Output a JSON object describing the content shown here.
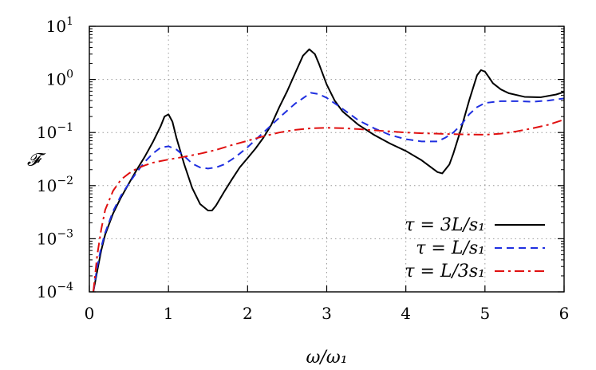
{
  "chart_data": {
    "type": "line",
    "title": "",
    "xlabel": "ω/ω₁",
    "ylabel": "𝓕",
    "xlim": [
      0,
      6
    ],
    "ylim_log10": [
      -4,
      1
    ],
    "y_scale": "log",
    "grid": true,
    "legend_position": "bottom-right",
    "x_ticks": [
      "0",
      "1",
      "2",
      "3",
      "4",
      "5",
      "6"
    ],
    "y_ticks": [
      {
        "mantissa": "10",
        "exponent": "1"
      },
      {
        "mantissa": "10",
        "exponent": "0"
      },
      {
        "mantissa": "10",
        "exponent": "−1"
      },
      {
        "mantissa": "10",
        "exponent": "−2"
      },
      {
        "mantissa": "10",
        "exponent": "−3"
      },
      {
        "mantissa": "10",
        "exponent": "−4"
      }
    ],
    "series": [
      {
        "name": "τ = 3L/s₁",
        "color": "#000000",
        "dash": "solid",
        "x": [
          0.05,
          0.1,
          0.15,
          0.2,
          0.3,
          0.4,
          0.5,
          0.6,
          0.7,
          0.8,
          0.9,
          0.95,
          1.0,
          1.05,
          1.1,
          1.2,
          1.3,
          1.4,
          1.5,
          1.55,
          1.6,
          1.7,
          1.8,
          1.9,
          2.0,
          2.1,
          2.2,
          2.3,
          2.4,
          2.5,
          2.6,
          2.7,
          2.78,
          2.85,
          2.9,
          3.0,
          3.1,
          3.2,
          3.4,
          3.6,
          3.8,
          4.0,
          4.2,
          4.4,
          4.46,
          4.55,
          4.6,
          4.7,
          4.8,
          4.9,
          4.95,
          5.0,
          5.05,
          5.1,
          5.2,
          5.3,
          5.5,
          5.7,
          5.9,
          6.0
        ],
        "y": [
          0.0001,
          0.00025,
          0.0006,
          0.0012,
          0.003,
          0.006,
          0.011,
          0.02,
          0.035,
          0.065,
          0.13,
          0.2,
          0.22,
          0.16,
          0.08,
          0.025,
          0.009,
          0.0045,
          0.0034,
          0.0034,
          0.0042,
          0.0075,
          0.013,
          0.022,
          0.033,
          0.05,
          0.08,
          0.14,
          0.3,
          0.6,
          1.3,
          2.8,
          3.7,
          3.0,
          2.0,
          0.8,
          0.4,
          0.25,
          0.14,
          0.09,
          0.062,
          0.045,
          0.03,
          0.018,
          0.017,
          0.025,
          0.04,
          0.12,
          0.4,
          1.2,
          1.5,
          1.4,
          1.1,
          0.85,
          0.65,
          0.55,
          0.47,
          0.46,
          0.52,
          0.58
        ]
      },
      {
        "name": "τ = L/s₁",
        "color": "#1f2fe0",
        "dash": "dashed",
        "x": [
          0.05,
          0.1,
          0.15,
          0.2,
          0.3,
          0.4,
          0.5,
          0.6,
          0.7,
          0.8,
          0.9,
          1.0,
          1.1,
          1.2,
          1.3,
          1.4,
          1.5,
          1.6,
          1.7,
          1.8,
          1.9,
          2.0,
          2.2,
          2.4,
          2.6,
          2.8,
          2.9,
          3.0,
          3.2,
          3.4,
          3.6,
          3.8,
          4.0,
          4.2,
          4.4,
          4.5,
          4.6,
          4.7,
          4.8,
          4.9,
          5.0,
          5.2,
          5.4,
          5.6,
          5.8,
          6.0
        ],
        "y": [
          0.0001,
          0.0003,
          0.0007,
          0.0013,
          0.0033,
          0.0065,
          0.011,
          0.018,
          0.028,
          0.04,
          0.052,
          0.055,
          0.048,
          0.036,
          0.026,
          0.022,
          0.021,
          0.022,
          0.025,
          0.031,
          0.04,
          0.053,
          0.1,
          0.19,
          0.35,
          0.56,
          0.53,
          0.45,
          0.28,
          0.17,
          0.12,
          0.09,
          0.075,
          0.068,
          0.068,
          0.08,
          0.1,
          0.14,
          0.22,
          0.3,
          0.36,
          0.39,
          0.39,
          0.38,
          0.4,
          0.44
        ]
      },
      {
        "name": "τ = L/3s₁",
        "color": "#e01010",
        "dash": "dashdot",
        "x": [
          0.05,
          0.1,
          0.15,
          0.2,
          0.3,
          0.4,
          0.5,
          0.6,
          0.7,
          0.8,
          0.9,
          1.0,
          1.2,
          1.4,
          1.6,
          1.8,
          2.0,
          2.2,
          2.4,
          2.6,
          2.8,
          3.0,
          3.2,
          3.4,
          3.6,
          3.8,
          4.0,
          4.2,
          4.4,
          4.6,
          4.8,
          5.0,
          5.2,
          5.4,
          5.6,
          5.8,
          6.0
        ],
        "y": [
          0.0001,
          0.0005,
          0.0015,
          0.0035,
          0.008,
          0.013,
          0.017,
          0.021,
          0.024,
          0.027,
          0.029,
          0.031,
          0.035,
          0.04,
          0.047,
          0.058,
          0.07,
          0.085,
          0.1,
          0.112,
          0.12,
          0.123,
          0.121,
          0.116,
          0.11,
          0.105,
          0.1,
          0.097,
          0.095,
          0.093,
          0.092,
          0.091,
          0.095,
          0.105,
          0.12,
          0.14,
          0.175
        ]
      }
    ]
  }
}
